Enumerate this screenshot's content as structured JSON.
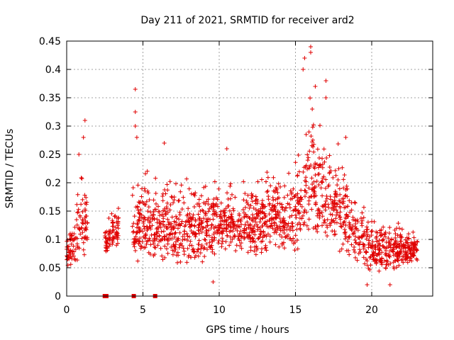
{
  "chart_data": {
    "type": "scatter",
    "title": "Day 211 of 2021, SRMTID for receiver ard2",
    "xlabel": "GPS time / hours",
    "ylabel": "SRMTID / TECUs",
    "xlim": [
      0,
      24
    ],
    "ylim": [
      0,
      0.45
    ],
    "xticks": [
      0,
      5,
      10,
      15,
      20
    ],
    "yticks": [
      0,
      0.05,
      0.1,
      0.15,
      0.2,
      0.25,
      0.3,
      0.35,
      0.4,
      0.45
    ],
    "ytick_labels": [
      "0",
      "0.05",
      "0.1",
      "0.15",
      "0.2",
      "0.25",
      "0.3",
      "0.35",
      "0.4",
      "0.45"
    ],
    "grid": true,
    "color": "#e00000",
    "marker": "plus",
    "zero_value_markers": {
      "marker": "square",
      "x": [
        2.5,
        2.6,
        4.4,
        5.8
      ]
    },
    "envelope": {
      "description": "approximate per-hour range of the dense cloud of SRMTID samples",
      "hours": [
        0,
        0.5,
        1,
        1.5,
        2.5,
        3,
        4.5,
        5,
        6,
        7,
        8,
        9,
        10,
        11,
        12,
        13,
        14,
        15,
        15.5,
        16,
        16.5,
        17,
        18,
        19,
        20,
        21,
        22,
        22.8
      ],
      "low": [
        0.05,
        0.05,
        0.06,
        0.07,
        0.06,
        0.08,
        0.06,
        0.05,
        0.06,
        0.05,
        0.05,
        0.05,
        0.07,
        0.06,
        0.06,
        0.07,
        0.08,
        0.07,
        0.08,
        0.09,
        0.1,
        0.1,
        0.07,
        0.05,
        0.04,
        0.04,
        0.05,
        0.06
      ],
      "high": [
        0.11,
        0.16,
        0.25,
        0.22,
        0.14,
        0.17,
        0.22,
        0.24,
        0.24,
        0.22,
        0.22,
        0.23,
        0.22,
        0.22,
        0.22,
        0.24,
        0.22,
        0.26,
        0.34,
        0.4,
        0.35,
        0.3,
        0.28,
        0.2,
        0.16,
        0.15,
        0.13,
        0.12
      ]
    },
    "segments": [
      [
        0,
        1.4
      ],
      [
        2.5,
        3.4
      ],
      [
        4.3,
        23
      ]
    ],
    "highlights": [
      {
        "x": 0.8,
        "y": 0.25
      },
      {
        "x": 1.2,
        "y": 0.31
      },
      {
        "x": 1.1,
        "y": 0.28
      },
      {
        "x": 4.5,
        "y": 0.365
      },
      {
        "x": 4.5,
        "y": 0.325
      },
      {
        "x": 4.5,
        "y": 0.3
      },
      {
        "x": 4.6,
        "y": 0.28
      },
      {
        "x": 6.4,
        "y": 0.27
      },
      {
        "x": 10.5,
        "y": 0.26
      },
      {
        "x": 15.5,
        "y": 0.4
      },
      {
        "x": 15.6,
        "y": 0.42
      },
      {
        "x": 16.0,
        "y": 0.44
      },
      {
        "x": 16.0,
        "y": 0.43
      },
      {
        "x": 16.3,
        "y": 0.37
      },
      {
        "x": 17.0,
        "y": 0.38
      },
      {
        "x": 17.0,
        "y": 0.35
      },
      {
        "x": 16.1,
        "y": 0.33
      },
      {
        "x": 18.3,
        "y": 0.28
      },
      {
        "x": 19.7,
        "y": 0.02
      },
      {
        "x": 21.2,
        "y": 0.02
      },
      {
        "x": 9.6,
        "y": 0.025
      }
    ]
  }
}
